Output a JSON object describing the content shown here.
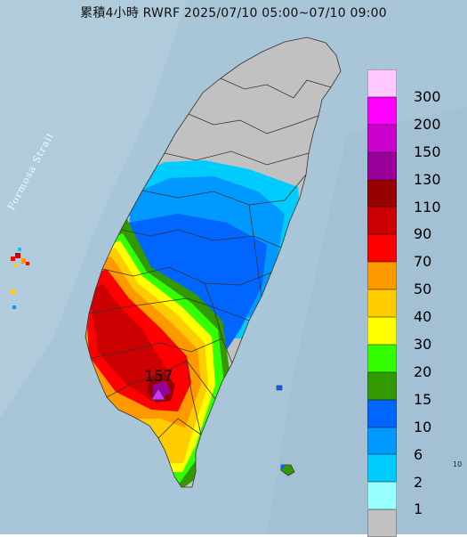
{
  "title": "累積4小時 RWRF 2025/07/10 05:00~07/10 09:00",
  "strait_label": "Formosa Strait",
  "max_value": "157",
  "edge_mark": "10",
  "colors": {
    "sea": "#a9c5d8",
    "land_no_data": "#c1c1c1",
    "county_border": "#333333"
  },
  "legend": [
    {
      "label": "300",
      "color": "#ffc8ff"
    },
    {
      "label": "200",
      "color": "#ff00ff"
    },
    {
      "label": "150",
      "color": "#cc00cc"
    },
    {
      "label": "130",
      "color": "#990099"
    },
    {
      "label": "110",
      "color": "#990000"
    },
    {
      "label": "90",
      "color": "#cc0000"
    },
    {
      "label": "70",
      "color": "#ff0000"
    },
    {
      "label": "50",
      "color": "#ff9900"
    },
    {
      "label": "40",
      "color": "#ffcc00"
    },
    {
      "label": "30",
      "color": "#ffff00"
    },
    {
      "label": "20",
      "color": "#33ff00"
    },
    {
      "label": "15",
      "color": "#339900"
    },
    {
      "label": "10",
      "color": "#0066ff"
    },
    {
      "label": "6",
      "color": "#0099ff"
    },
    {
      "label": "2",
      "color": "#00ccff"
    },
    {
      "label": "1",
      "color": "#99ffff"
    },
    {
      "label": "",
      "color": "#c1c1c1"
    }
  ]
}
